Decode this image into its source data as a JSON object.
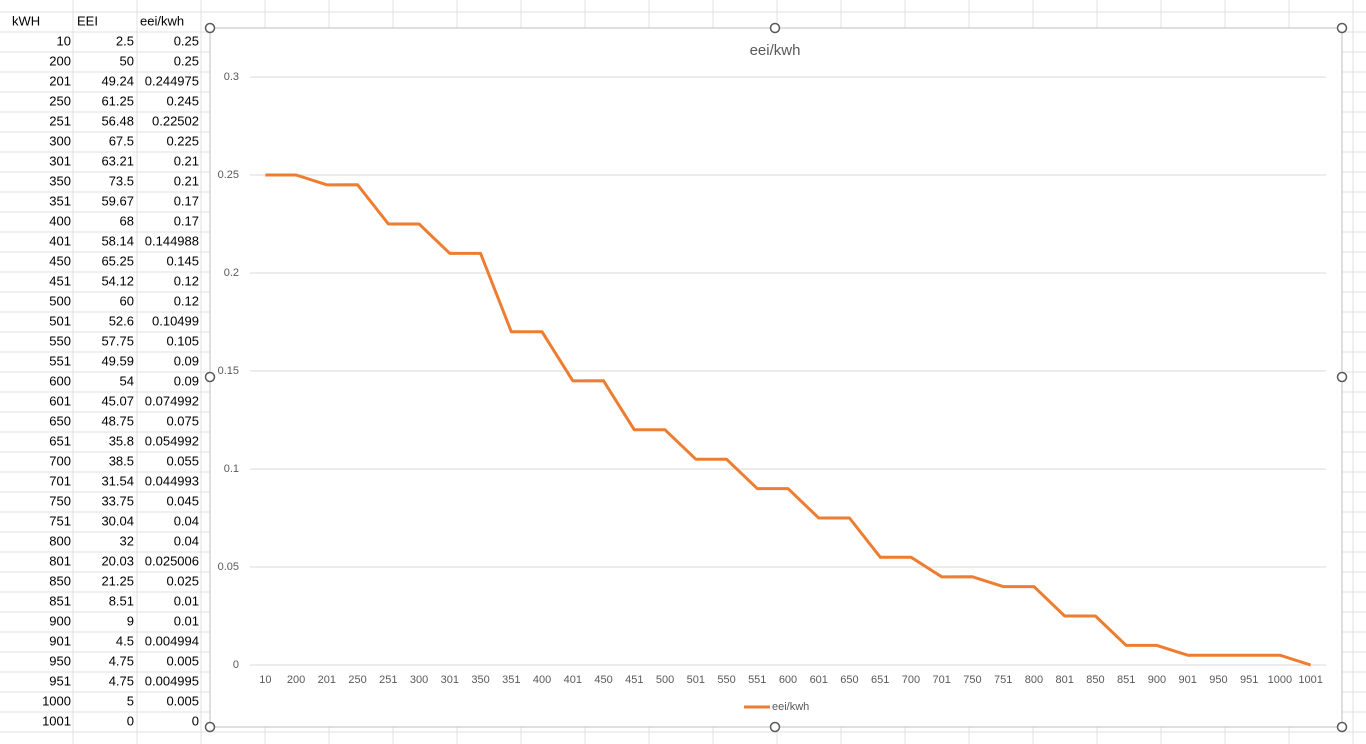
{
  "table": {
    "header": [
      "kWH",
      "EEI",
      "eei/kwh"
    ],
    "rows": [
      [
        "10",
        "2.5",
        "0.25"
      ],
      [
        "200",
        "50",
        "0.25"
      ],
      [
        "201",
        "49.24",
        "0.244975"
      ],
      [
        "250",
        "61.25",
        "0.245"
      ],
      [
        "251",
        "56.48",
        "0.22502"
      ],
      [
        "300",
        "67.5",
        "0.225"
      ],
      [
        "301",
        "63.21",
        "0.21"
      ],
      [
        "350",
        "73.5",
        "0.21"
      ],
      [
        "351",
        "59.67",
        "0.17"
      ],
      [
        "400",
        "68",
        "0.17"
      ],
      [
        "401",
        "58.14",
        "0.144988"
      ],
      [
        "450",
        "65.25",
        "0.145"
      ],
      [
        "451",
        "54.12",
        "0.12"
      ],
      [
        "500",
        "60",
        "0.12"
      ],
      [
        "501",
        "52.6",
        "0.10499"
      ],
      [
        "550",
        "57.75",
        "0.105"
      ],
      [
        "551",
        "49.59",
        "0.09"
      ],
      [
        "600",
        "54",
        "0.09"
      ],
      [
        "601",
        "45.07",
        "0.074992"
      ],
      [
        "650",
        "48.75",
        "0.075"
      ],
      [
        "651",
        "35.8",
        "0.054992"
      ],
      [
        "700",
        "38.5",
        "0.055"
      ],
      [
        "701",
        "31.54",
        "0.044993"
      ],
      [
        "750",
        "33.75",
        "0.045"
      ],
      [
        "751",
        "30.04",
        "0.04"
      ],
      [
        "800",
        "32",
        "0.04"
      ],
      [
        "801",
        "20.03",
        "0.025006"
      ],
      [
        "850",
        "21.25",
        "0.025"
      ],
      [
        "851",
        "8.51",
        "0.01"
      ],
      [
        "900",
        "9",
        "0.01"
      ],
      [
        "901",
        "4.5",
        "0.004994"
      ],
      [
        "950",
        "4.75",
        "0.005"
      ],
      [
        "951",
        "4.75",
        "0.004995"
      ],
      [
        "1000",
        "5",
        "0.005"
      ],
      [
        "1001",
        "0",
        "0"
      ]
    ]
  },
  "chart_data": {
    "type": "line",
    "title": "eei/kwh",
    "categories": [
      "10",
      "200",
      "201",
      "250",
      "251",
      "300",
      "301",
      "350",
      "351",
      "400",
      "401",
      "450",
      "451",
      "500",
      "501",
      "550",
      "551",
      "600",
      "601",
      "650",
      "651",
      "700",
      "701",
      "750",
      "751",
      "800",
      "801",
      "850",
      "851",
      "900",
      "901",
      "950",
      "951",
      "1000",
      "1001"
    ],
    "series": [
      {
        "name": "eei/kwh",
        "color": "#ed7d31",
        "values": [
          0.25,
          0.25,
          0.244975,
          0.245,
          0.22502,
          0.225,
          0.21,
          0.21,
          0.17,
          0.17,
          0.144988,
          0.145,
          0.12,
          0.12,
          0.10499,
          0.105,
          0.09,
          0.09,
          0.074992,
          0.075,
          0.054992,
          0.055,
          0.044993,
          0.045,
          0.04,
          0.04,
          0.025006,
          0.025,
          0.01,
          0.01,
          0.004994,
          0.005,
          0.004995,
          0.005,
          0
        ]
      }
    ],
    "ylim": [
      0,
      0.3
    ],
    "yticks": [
      0,
      0.05,
      0.1,
      0.15,
      0.2,
      0.25,
      0.3
    ],
    "grid": true,
    "legend": "bottom"
  }
}
